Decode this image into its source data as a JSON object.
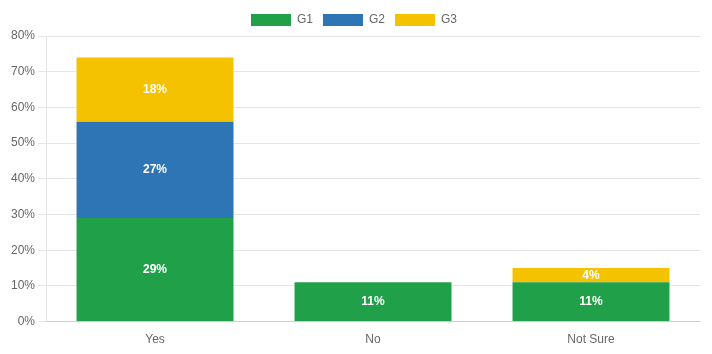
{
  "chart_data": {
    "type": "bar",
    "categories": [
      "Yes",
      "No",
      "Not Sure"
    ],
    "series": [
      {
        "name": "G1",
        "color": "#21a04a",
        "values": [
          29,
          11,
          11
        ],
        "value_labels": [
          "29%",
          "11%",
          "11%"
        ]
      },
      {
        "name": "G2",
        "color": "#2e75b6",
        "values": [
          27,
          0,
          0
        ],
        "value_labels": [
          "27%",
          null,
          null
        ]
      },
      {
        "name": "G3",
        "color": "#f5c200",
        "values": [
          18,
          0,
          4
        ],
        "value_labels": [
          "18%",
          null,
          "4%"
        ]
      }
    ],
    "stacked": true,
    "data_labels": true,
    "ylim": [
      0,
      80
    ],
    "yticks": [
      {
        "value": 0,
        "label": "0%"
      },
      {
        "value": 10,
        "label": "10%"
      },
      {
        "value": 20,
        "label": "20%"
      },
      {
        "value": 30,
        "label": "30%"
      },
      {
        "value": 40,
        "label": "40%"
      },
      {
        "value": 50,
        "label": "50%"
      },
      {
        "value": 60,
        "label": "60%"
      },
      {
        "value": 70,
        "label": "70%"
      },
      {
        "value": 80,
        "label": "80%"
      }
    ],
    "grid": true,
    "legend": "top"
  }
}
